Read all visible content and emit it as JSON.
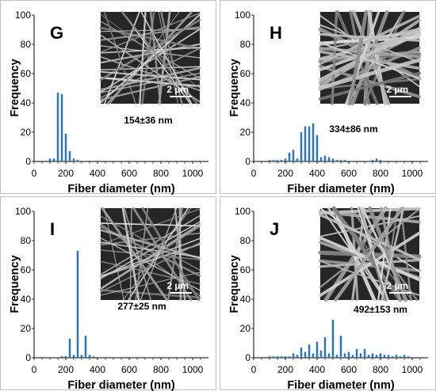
{
  "chart_data": [
    {
      "type": "bar",
      "panel_label": "G",
      "annotation": "154±36 nm",
      "xlabel": "Fiber diameter (nm)",
      "ylabel": "Frequency",
      "xticks": [
        "0",
        "200",
        "400",
        "600",
        "800",
        "1000"
      ],
      "yticks": [
        "0",
        "20",
        "40",
        "60",
        "80",
        "100"
      ],
      "xlim": [
        0,
        1100
      ],
      "ylim": [
        0,
        100
      ],
      "scale_bar": "2 µm",
      "x": [
        100,
        125,
        150,
        175,
        200,
        225,
        250,
        275
      ],
      "values": [
        2,
        2,
        47,
        46,
        19,
        7,
        2,
        1
      ]
    },
    {
      "type": "bar",
      "panel_label": "H",
      "annotation": "334±86 nm",
      "xlabel": "Fiber diameter (nm)",
      "ylabel": "Frequency",
      "xticks": [
        "0",
        "200",
        "400",
        "600",
        "800",
        "1000"
      ],
      "yticks": [
        "0",
        "20",
        "40",
        "60",
        "80",
        "100"
      ],
      "xlim": [
        0,
        1100
      ],
      "ylim": [
        0,
        100
      ],
      "scale_bar": "2 µm",
      "x": [
        100,
        125,
        150,
        175,
        200,
        225,
        250,
        275,
        300,
        325,
        350,
        375,
        400,
        425,
        450,
        475,
        500,
        525,
        550,
        575,
        600,
        625,
        650,
        675,
        700,
        725,
        750,
        775,
        800,
        825
      ],
      "values": [
        1,
        1,
        1,
        1,
        2,
        6,
        8,
        2,
        20,
        24,
        24,
        26,
        18,
        3,
        4,
        3,
        2,
        1,
        1,
        1,
        0,
        0,
        0,
        0,
        0,
        0,
        1,
        2,
        1,
        0
      ]
    },
    {
      "type": "bar",
      "panel_label": "I",
      "annotation": "277±25 nm",
      "xlabel": "Fiber diameter (nm)",
      "ylabel": "Frequency",
      "xticks": [
        "0",
        "200",
        "400",
        "600",
        "800",
        "1000"
      ],
      "yticks": [
        "0",
        "20",
        "40",
        "60",
        "80",
        "100"
      ],
      "xlim": [
        0,
        1100
      ],
      "ylim": [
        0,
        100
      ],
      "scale_bar": "2 µm",
      "x": [
        175,
        200,
        225,
        250,
        275,
        300,
        325,
        350,
        375
      ],
      "values": [
        1,
        1,
        13,
        2,
        73,
        2,
        15,
        2,
        1
      ]
    },
    {
      "type": "bar",
      "panel_label": "J",
      "annotation": "492±153 nm",
      "xlabel": "Fiber diameter (nm)",
      "ylabel": "Frequency",
      "xticks": [
        "0",
        "200",
        "400",
        "600",
        "800",
        "1000"
      ],
      "yticks": [
        "0",
        "20",
        "40",
        "60",
        "80",
        "100"
      ],
      "xlim": [
        0,
        1100
      ],
      "ylim": [
        0,
        100
      ],
      "scale_bar": "2 µm",
      "x": [
        100,
        125,
        150,
        175,
        200,
        225,
        250,
        275,
        300,
        325,
        350,
        375,
        400,
        425,
        450,
        475,
        500,
        525,
        550,
        575,
        600,
        625,
        650,
        675,
        700,
        725,
        750,
        775,
        800,
        825,
        850,
        875,
        900,
        925,
        950,
        975
      ],
      "values": [
        1,
        1,
        1,
        1,
        1,
        1,
        3,
        2,
        7,
        4,
        9,
        3,
        11,
        5,
        14,
        3,
        26,
        2,
        15,
        3,
        4,
        2,
        6,
        3,
        6,
        2,
        3,
        2,
        3,
        2,
        2,
        1,
        2,
        1,
        2,
        1
      ]
    }
  ]
}
